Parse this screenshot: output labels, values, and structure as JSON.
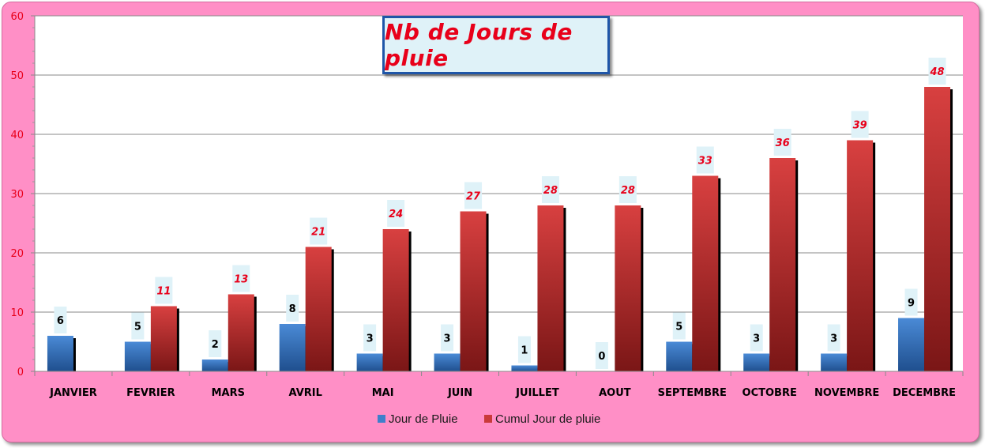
{
  "chart_data": {
    "type": "bar",
    "title": "Nb de Jours de pluie",
    "categories": [
      "JANVIER",
      "FEVRIER",
      "MARS",
      "AVRIL",
      "MAI",
      "JUIN",
      "JUILLET",
      "AOUT",
      "SEPTEMBRE",
      "OCTOBRE",
      "NOVEMBRE",
      "DECEMBRE"
    ],
    "series": [
      {
        "name": "Jour de Pluie",
        "values": [
          6,
          5,
          2,
          8,
          3,
          3,
          1,
          0,
          5,
          3,
          3,
          9
        ],
        "color": "#3f7fcb"
      },
      {
        "name": "Cumul Jour de pluie",
        "values": [
          null,
          11,
          13,
          21,
          24,
          27,
          28,
          28,
          33,
          36,
          39,
          48
        ],
        "color": "#c93a3a"
      }
    ],
    "ylim": [
      0,
      60
    ],
    "yticks": [
      0,
      10,
      20,
      30,
      40,
      50,
      60
    ],
    "grid": true,
    "legend_position": "bottom",
    "colors": {
      "background": "#ff8fc6",
      "plot": "#ffffff",
      "axis_text": "#e8001a",
      "title": "#e8001a",
      "title_border": "#1f56a8",
      "label_box": "#dff2f8"
    }
  }
}
